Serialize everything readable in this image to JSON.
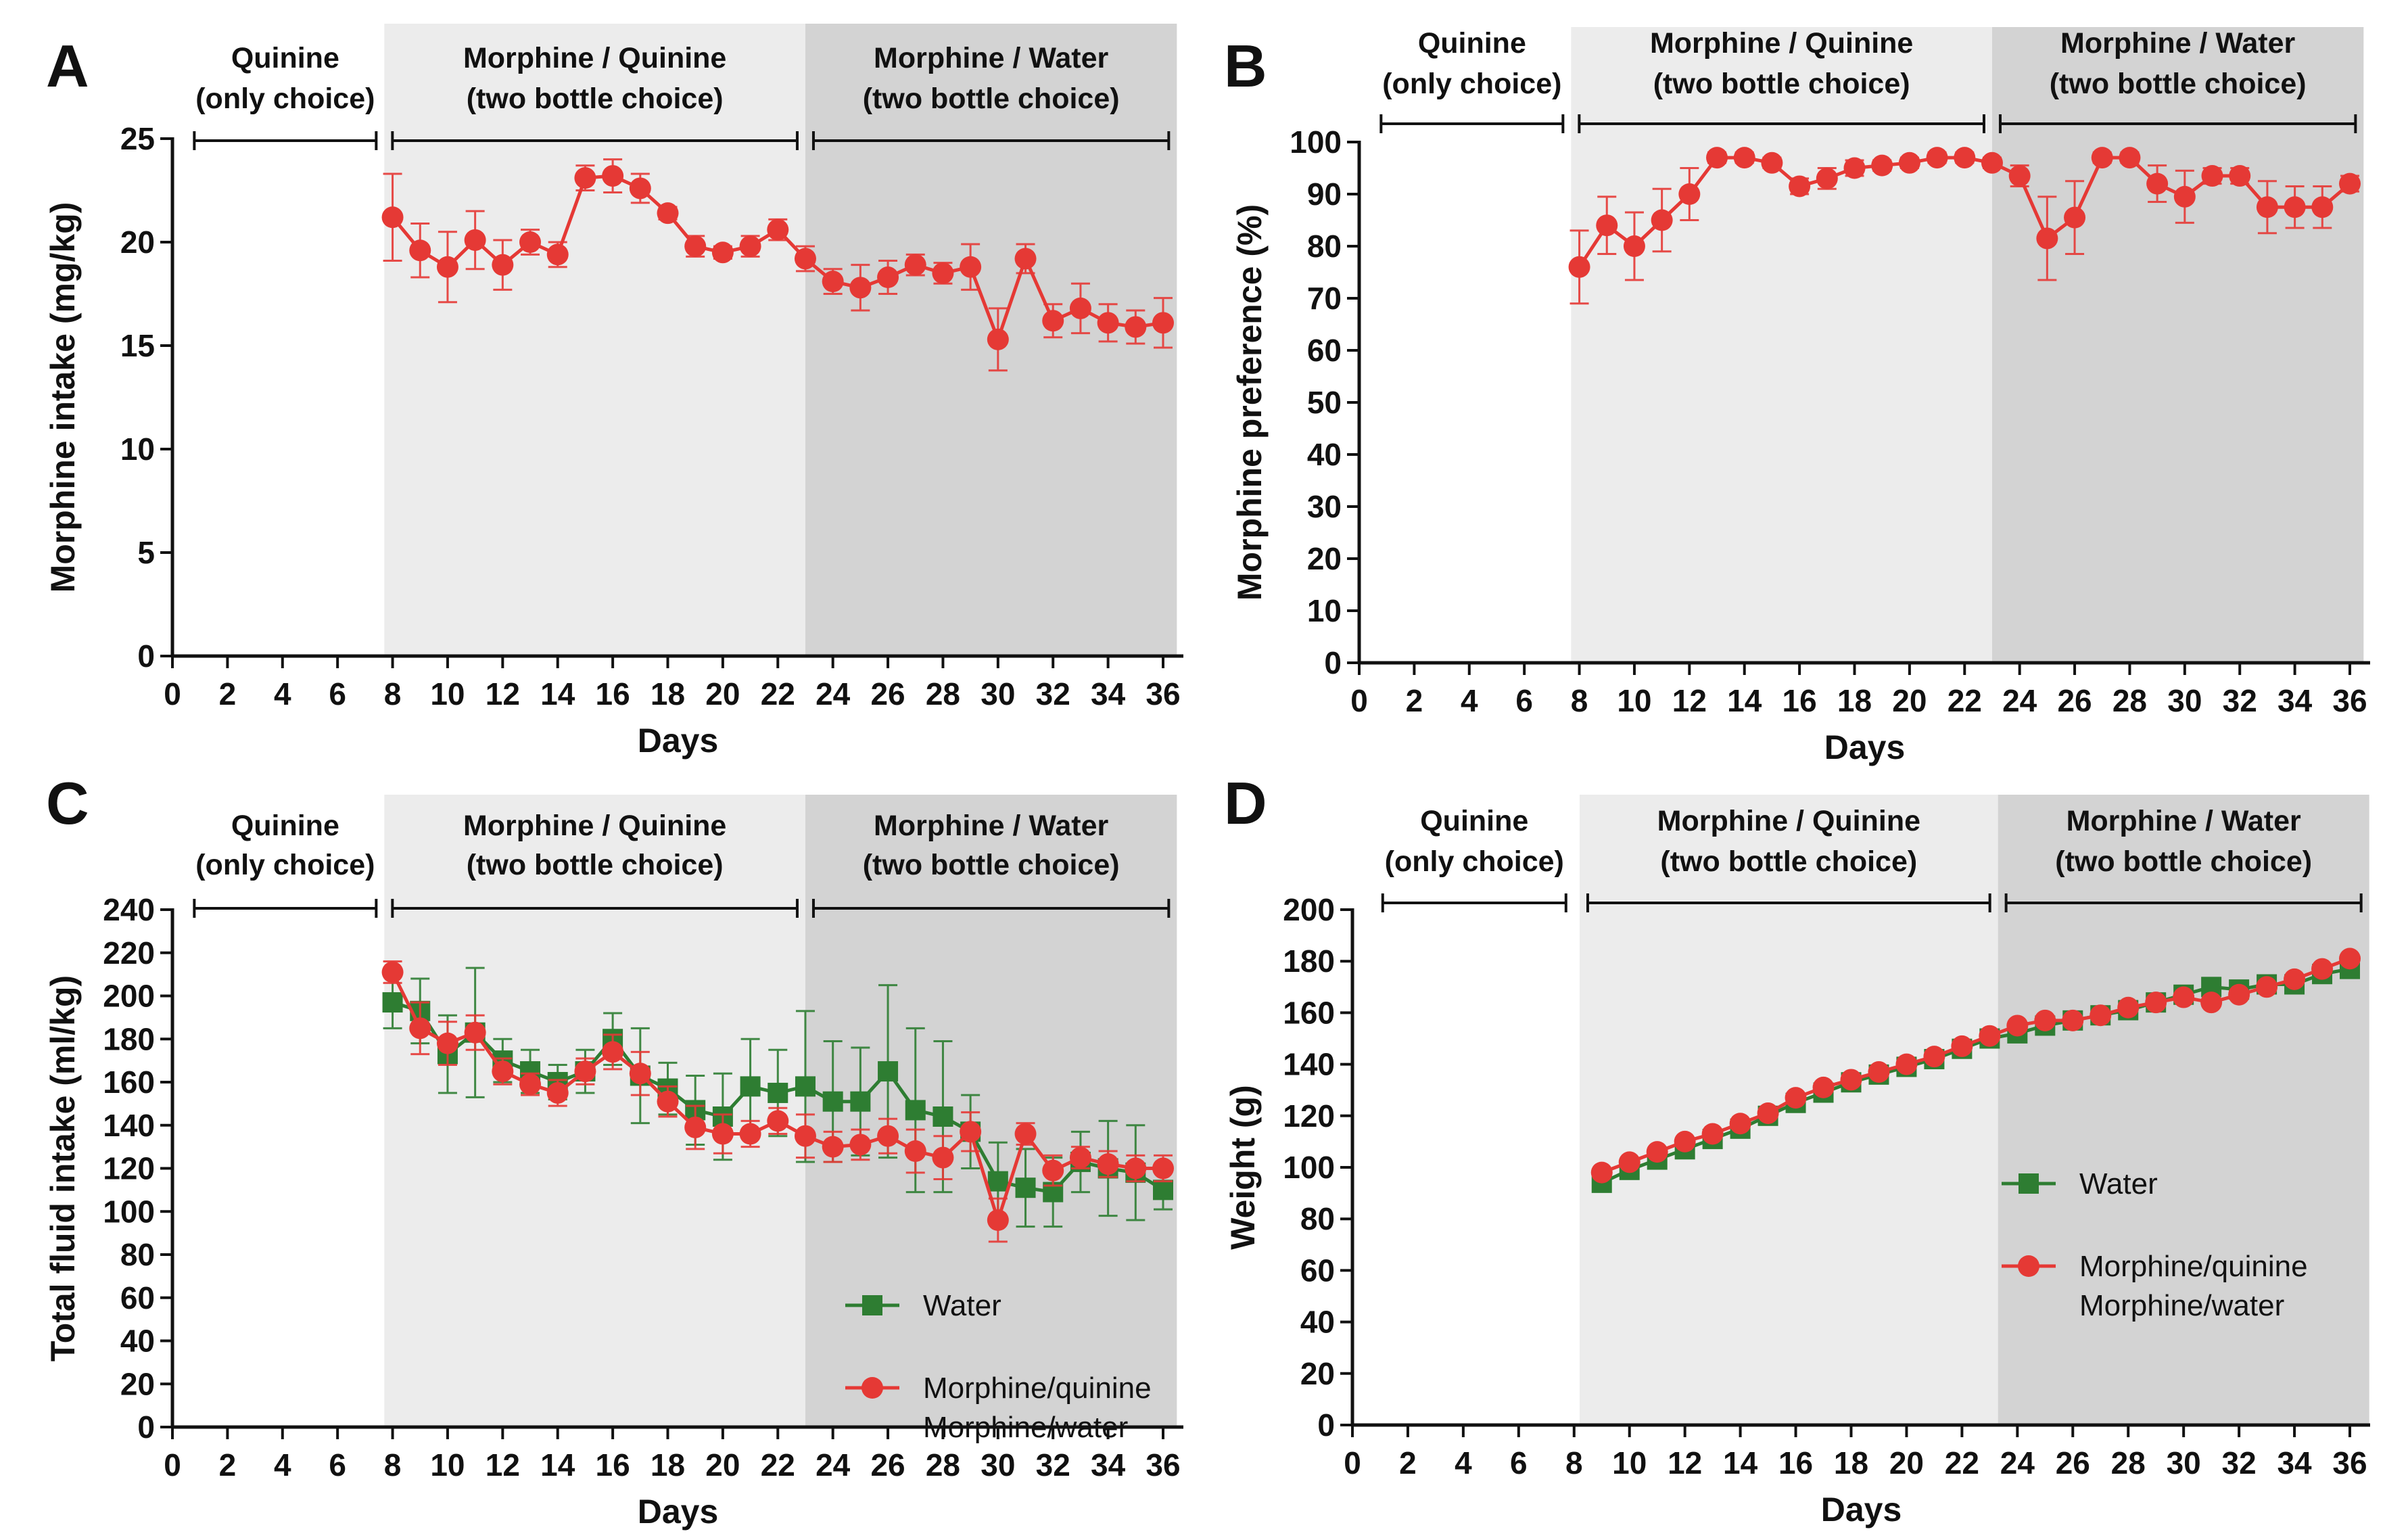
{
  "colors": {
    "red": "#e53935",
    "green": "#2e7d32",
    "shade_light": "#ececec",
    "shade_dark": "#d3d3d3"
  },
  "chart_data": [
    {
      "panel": "A",
      "type": "line",
      "xlabel": "Days",
      "ylabel": "Morphine intake (mg/kg)",
      "xlim": [
        0,
        36
      ],
      "ylim": [
        0,
        25
      ],
      "xticks": [
        0,
        2,
        4,
        6,
        8,
        10,
        12,
        14,
        16,
        18,
        20,
        22,
        24,
        26,
        28,
        30,
        32,
        34,
        36
      ],
      "yticks": [
        0,
        5,
        10,
        15,
        20,
        25
      ],
      "ytick_labels": [
        "0",
        "5",
        "10",
        "15",
        "20",
        "25"
      ],
      "phases": [
        {
          "line1": "Quinine",
          "line2": "(only choice)",
          "start": 0.5,
          "end": 7.7,
          "shade": "none"
        },
        {
          "line1": "Morphine / Quinine",
          "line2": "(two bottle choice)",
          "start": 7.7,
          "end": 23,
          "shade": "light"
        },
        {
          "line1": "Morphine / Water",
          "line2": "(two bottle choice)",
          "start": 23,
          "end": 36.5,
          "shade": "dark"
        }
      ],
      "series": [
        {
          "name": "Morphine intake",
          "marker": "circle",
          "color": "red",
          "x": [
            8,
            9,
            10,
            11,
            12,
            13,
            14,
            15,
            16,
            17,
            18,
            19,
            20,
            21,
            22,
            23,
            24,
            25,
            26,
            27,
            28,
            29,
            30,
            31,
            32,
            33,
            34,
            35,
            36
          ],
          "y": [
            21.2,
            19.6,
            18.8,
            20.1,
            18.9,
            20.0,
            19.4,
            23.1,
            23.2,
            22.6,
            21.4,
            19.8,
            19.5,
            19.8,
            20.6,
            19.2,
            18.1,
            17.8,
            18.3,
            18.9,
            18.5,
            18.8,
            15.3,
            19.2,
            16.2,
            16.8,
            16.1,
            15.9,
            16.1
          ],
          "err": [
            2.1,
            1.3,
            1.7,
            1.4,
            1.2,
            0.6,
            0.6,
            0.6,
            0.8,
            0.7,
            0.3,
            0.5,
            0.3,
            0.5,
            0.5,
            0.6,
            0.6,
            1.1,
            0.8,
            0.5,
            0.5,
            1.1,
            1.5,
            0.7,
            0.8,
            1.2,
            0.9,
            0.8,
            1.2
          ]
        }
      ]
    },
    {
      "panel": "B",
      "type": "line",
      "xlabel": "Days",
      "ylabel": "Morphine preference (%)",
      "xlim": [
        0,
        36
      ],
      "ylim": [
        0,
        100
      ],
      "xticks": [
        0,
        2,
        4,
        6,
        8,
        10,
        12,
        14,
        16,
        18,
        20,
        22,
        24,
        26,
        28,
        30,
        32,
        34,
        36
      ],
      "yticks": [
        0,
        10,
        20,
        30,
        40,
        50,
        60,
        70,
        80,
        90,
        100
      ],
      "ytick_labels": [
        "0",
        "10",
        "20",
        "30",
        "40",
        "50",
        "60",
        "70",
        "80",
        "90",
        "100"
      ],
      "phases": [
        {
          "line1": "Quinine",
          "line2": "(only choice)",
          "start": 0.5,
          "end": 7.7,
          "shade": "none"
        },
        {
          "line1": "Morphine / Quinine",
          "line2": "(two bottle choice)",
          "start": 7.7,
          "end": 23,
          "shade": "light"
        },
        {
          "line1": "Morphine / Water",
          "line2": "(two bottle choice)",
          "start": 23,
          "end": 36.5,
          "shade": "dark"
        }
      ],
      "series": [
        {
          "name": "Morphine preference",
          "marker": "circle",
          "color": "red",
          "x": [
            8,
            9,
            10,
            11,
            12,
            13,
            14,
            15,
            16,
            17,
            18,
            19,
            20,
            21,
            22,
            23,
            24,
            25,
            26,
            27,
            28,
            29,
            30,
            31,
            32,
            33,
            34,
            35,
            36
          ],
          "y": [
            76,
            84,
            80,
            85,
            90,
            97,
            97,
            96,
            91.5,
            93,
            95,
            95.5,
            96,
            97,
            97,
            96,
            93.5,
            81.5,
            85.5,
            97,
            97,
            92,
            89.5,
            93.5,
            93.5,
            87.5,
            87.5,
            87.5,
            92
          ],
          "err": [
            7,
            5.5,
            6.5,
            6,
            5,
            1,
            1,
            1,
            1.5,
            2,
            1.5,
            1,
            1,
            1,
            1,
            1,
            2,
            8,
            7,
            1,
            1,
            3.5,
            5,
            1.5,
            1.5,
            5,
            4,
            4,
            1.5
          ]
        }
      ]
    },
    {
      "panel": "C",
      "type": "line",
      "xlabel": "Days",
      "ylabel": "Total fluid intake (ml/kg)",
      "xlim": [
        0,
        36
      ],
      "ylim": [
        0,
        240
      ],
      "xticks": [
        0,
        2,
        4,
        6,
        8,
        10,
        12,
        14,
        16,
        18,
        20,
        22,
        24,
        26,
        28,
        30,
        32,
        34,
        36
      ],
      "yticks": [
        0,
        20,
        40,
        60,
        80,
        100,
        120,
        140,
        160,
        180,
        200,
        220,
        240
      ],
      "ytick_labels": [
        "0",
        "20",
        "40",
        "60",
        "80",
        "100",
        "120",
        "140",
        "160",
        "180",
        "200",
        "220",
        "240"
      ],
      "phases": [
        {
          "line1": "Quinine",
          "line2": "(only choice)",
          "start": 0.5,
          "end": 7.7,
          "shade": "none"
        },
        {
          "line1": "Morphine / Quinine",
          "line2": "(two bottle choice)",
          "start": 7.7,
          "end": 23,
          "shade": "light"
        },
        {
          "line1": "Morphine / Water",
          "line2": "(two bottle choice)",
          "start": 23,
          "end": 36.5,
          "shade": "dark"
        }
      ],
      "legend": {
        "position": "bottom-right",
        "entries": [
          {
            "marker": "square",
            "color": "green",
            "lines": [
              "Water"
            ]
          },
          {
            "marker": "circle",
            "color": "red",
            "lines": [
              "Morphine/quinine",
              "Morphine/water"
            ]
          }
        ]
      },
      "series": [
        {
          "name": "Water",
          "marker": "square",
          "color": "green",
          "x": [
            8,
            9,
            10,
            11,
            12,
            13,
            14,
            15,
            16,
            17,
            18,
            19,
            20,
            21,
            22,
            23,
            24,
            25,
            26,
            27,
            28,
            29,
            30,
            31,
            32,
            33,
            34,
            35,
            36
          ],
          "y": [
            197,
            193,
            173,
            183,
            170,
            165,
            160,
            165,
            180,
            163,
            157,
            147,
            144,
            158,
            155,
            158,
            151,
            151,
            165,
            147,
            144,
            137,
            114,
            111,
            109,
            123,
            120,
            118,
            110
          ],
          "err": [
            12,
            15,
            18,
            30,
            10,
            10,
            8,
            10,
            12,
            22,
            12,
            16,
            20,
            22,
            20,
            35,
            28,
            25,
            40,
            38,
            35,
            17,
            18,
            18,
            16,
            14,
            22,
            22,
            9
          ]
        },
        {
          "name": "Morphine/quinine, Morphine/water",
          "marker": "circle",
          "color": "red",
          "x": [
            8,
            9,
            10,
            11,
            12,
            13,
            14,
            15,
            16,
            17,
            18,
            19,
            20,
            21,
            22,
            23,
            24,
            25,
            26,
            27,
            28,
            29,
            30,
            31,
            32,
            33,
            34,
            35,
            36
          ],
          "y": [
            211,
            185,
            178,
            183,
            165,
            159,
            155,
            165,
            174,
            164,
            151,
            139,
            136,
            136,
            142,
            135,
            130,
            131,
            135,
            128,
            125,
            137,
            96,
            136,
            119,
            125,
            122,
            120,
            120
          ],
          "err": [
            5,
            12,
            10,
            8,
            6,
            5,
            6,
            6,
            8,
            10,
            7,
            10,
            9,
            6,
            6,
            10,
            7,
            7,
            8,
            10,
            10,
            9,
            10,
            5,
            7,
            5,
            6,
            6,
            6
          ]
        }
      ]
    },
    {
      "panel": "D",
      "type": "line",
      "xlabel": "Days",
      "ylabel": "Weight (g)",
      "xlim": [
        0,
        36
      ],
      "ylim": [
        0,
        200
      ],
      "xticks": [
        0,
        2,
        4,
        6,
        8,
        10,
        12,
        14,
        16,
        18,
        20,
        22,
        24,
        26,
        28,
        30,
        32,
        34,
        36
      ],
      "yticks": [
        0,
        20,
        40,
        60,
        80,
        100,
        120,
        140,
        160,
        180,
        200
      ],
      "ytick_labels": [
        "0",
        "20",
        "40",
        "60",
        "80",
        "100",
        "120",
        "140",
        "160",
        "180",
        "200"
      ],
      "phases": [
        {
          "line1": "Quinine",
          "line2": "(only choice)",
          "start": 0.8,
          "end": 8.0,
          "shade": "none"
        },
        {
          "line1": "Morphine / Quinine",
          "line2": "(two bottle choice)",
          "start": 8.2,
          "end": 23.3,
          "shade": "light"
        },
        {
          "line1": "Morphine / Water",
          "line2": "(two bottle choice)",
          "start": 23.3,
          "end": 36.7,
          "shade": "dark"
        }
      ],
      "legend": {
        "position": "center-right",
        "entries": [
          {
            "marker": "square",
            "color": "green",
            "lines": [
              "Water"
            ]
          },
          {
            "marker": "circle",
            "color": "red",
            "lines": [
              "Morphine/quinine",
              "Morphine/water"
            ]
          }
        ]
      },
      "series": [
        {
          "name": "Water",
          "marker": "square",
          "color": "green",
          "x": [
            9,
            10,
            11,
            12,
            13,
            14,
            15,
            16,
            17,
            18,
            19,
            20,
            21,
            22,
            23,
            24,
            25,
            26,
            27,
            28,
            29,
            30,
            31,
            32,
            33,
            34,
            35,
            36
          ],
          "y": [
            94,
            99,
            103,
            107,
            111,
            115,
            120,
            125,
            129,
            133,
            136,
            139,
            142,
            146,
            150,
            152,
            155,
            157,
            159,
            161,
            164,
            167,
            170,
            169,
            171,
            171,
            175,
            177
          ],
          "err": [
            0,
            0,
            0,
            0,
            0,
            0,
            0,
            0,
            0,
            0,
            0,
            0,
            0,
            0,
            0,
            0,
            0,
            0,
            0,
            0,
            0,
            0,
            0,
            0,
            0,
            0,
            0,
            0
          ]
        },
        {
          "name": "Morphine/quinine, Morphine/water",
          "marker": "circle",
          "color": "red",
          "x": [
            9,
            10,
            11,
            12,
            13,
            14,
            15,
            16,
            17,
            18,
            19,
            20,
            21,
            22,
            23,
            24,
            25,
            26,
            27,
            28,
            29,
            30,
            31,
            32,
            33,
            34,
            35,
            36
          ],
          "y": [
            98,
            102,
            106,
            110,
            113,
            117,
            121,
            127,
            131,
            134,
            137,
            140,
            143,
            147,
            151,
            155,
            157,
            157,
            159,
            162,
            164,
            166,
            164,
            167,
            170,
            173,
            177,
            181
          ],
          "err": [
            0,
            0,
            0,
            0,
            0,
            0,
            0,
            0,
            0,
            0,
            0,
            0,
            0,
            0,
            0,
            0,
            0,
            0,
            0,
            0,
            0,
            0,
            0,
            0,
            0,
            0,
            0,
            0
          ]
        }
      ]
    }
  ]
}
